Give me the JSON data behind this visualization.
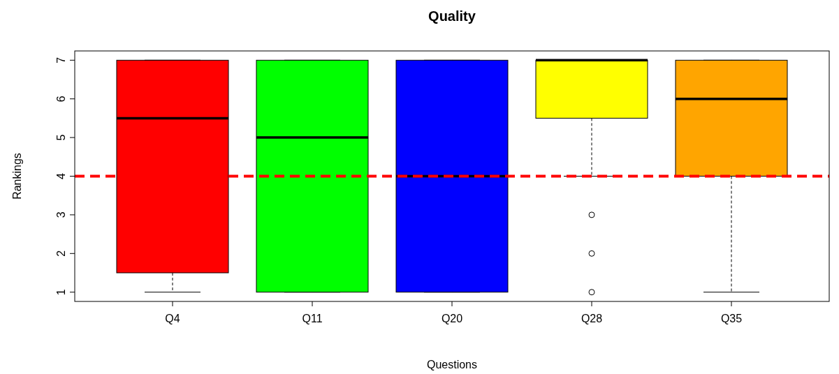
{
  "chart_data": {
    "type": "box",
    "title": "Quality",
    "xlabel": "Questions",
    "ylabel": "Rankings",
    "categories": [
      "Q4",
      "Q11",
      "Q20",
      "Q28",
      "Q35"
    ],
    "colors": [
      "#ff0000",
      "#00ff00",
      "#0000ff",
      "#ffff00",
      "#ffa500"
    ],
    "boxes": [
      {
        "low": 1,
        "q1": 1.5,
        "median": 5.5,
        "q3": 7,
        "high": 7
      },
      {
        "low": 1,
        "q1": 1,
        "median": 5,
        "q3": 7,
        "high": 7
      },
      {
        "low": 1,
        "q1": 1,
        "median": 4,
        "q3": 7,
        "high": 7
      },
      {
        "low": 4,
        "q1": 5.5,
        "median": 7,
        "q3": 7,
        "high": 7,
        "outliers": [
          3,
          2,
          1
        ]
      },
      {
        "low": 1,
        "q1": 4,
        "median": 6,
        "q3": 7,
        "high": 7
      }
    ],
    "ylim": [
      0.76,
      7.24
    ],
    "yticks": [
      1,
      2,
      3,
      4,
      5,
      6,
      7
    ],
    "ref_lines": [
      {
        "axis": "y",
        "value": 4,
        "color": "#ff0000",
        "line_style": "dashed"
      }
    ]
  }
}
